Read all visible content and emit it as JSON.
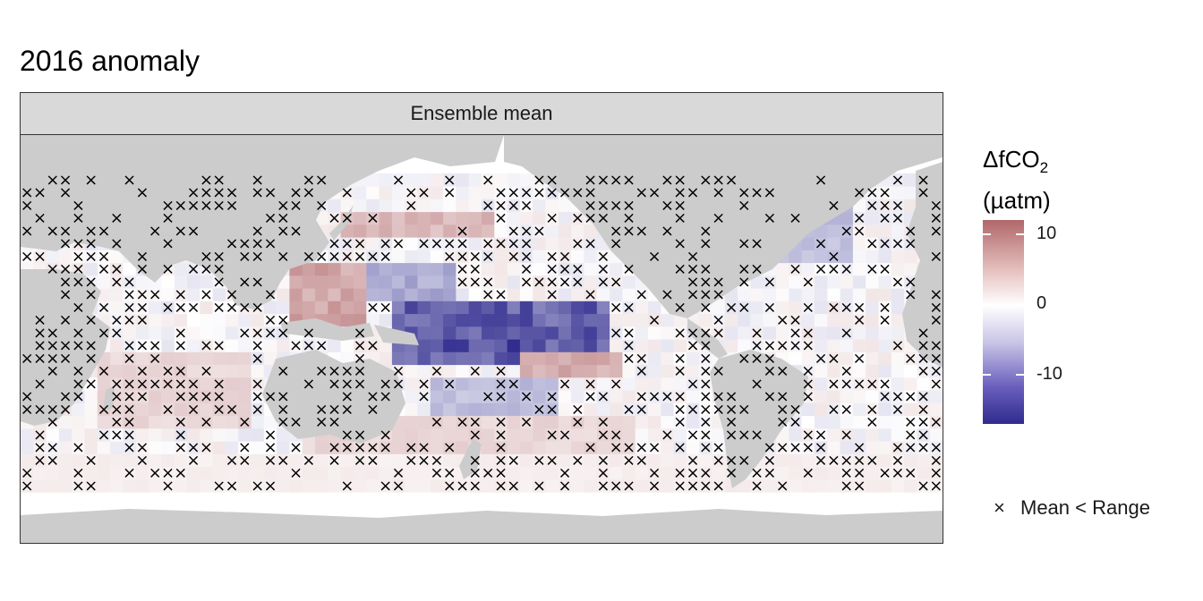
{
  "title": "2016 anomaly",
  "facet_label": "Ensemble mean",
  "legend": {
    "title_main": "ΔfCO",
    "title_sub": "2",
    "units": "(µatm)",
    "ticks": [
      {
        "value": 10,
        "label": "10"
      },
      {
        "value": 0,
        "label": "0"
      },
      {
        "value": -10,
        "label": "-10"
      }
    ],
    "range": [
      -17,
      12
    ],
    "colors": {
      "high": "#b0676a",
      "mid": "#ffffff",
      "low": "#2f2b8e"
    },
    "mark_symbol": "×",
    "mark_label": "Mean < Range"
  },
  "colors": {
    "land": "#cccccc",
    "ocean": "#ffffff",
    "strip": "#d9d9d9"
  },
  "chart_data": {
    "type": "heatmap",
    "projection": "plate carree, Pacific-centered (0–360°E)",
    "lon_range": [
      20,
      380
    ],
    "lat_range": [
      -80,
      80
    ],
    "cell_size_deg": 5,
    "variable": "ΔfCO2 anomaly (µatm)",
    "anomaly_regions": [
      {
        "lon": [
          165,
          250
        ],
        "lat": [
          -10,
          15
        ],
        "value": -15
      },
      {
        "lon": [
          170,
          225
        ],
        "lat": [
          -5,
          5
        ],
        "value": -17
      },
      {
        "lon": [
          150,
          190
        ],
        "lat": [
          15,
          30
        ],
        "value": -7
      },
      {
        "lon": [
          180,
          230
        ],
        "lat": [
          -30,
          -15
        ],
        "value": -5
      },
      {
        "lon": [
          300,
          345
        ],
        "lat": [
          30,
          55
        ],
        "value": -5
      },
      {
        "lon": [
          145,
          205
        ],
        "lat": [
          38,
          50
        ],
        "value": 6
      },
      {
        "lon": [
          125,
          155
        ],
        "lat": [
          5,
          30
        ],
        "value": 8
      },
      {
        "lon": [
          50,
          110
        ],
        "lat": [
          -35,
          -5
        ],
        "value": 3
      },
      {
        "lon": [
          130,
          260
        ],
        "lat": [
          -45,
          -30
        ],
        "value": 3
      },
      {
        "lon": [
          215,
          255
        ],
        "lat": [
          -15,
          -5
        ],
        "value": 7
      },
      {
        "lon": [
          275,
          300
        ],
        "lat": [
          25,
          40
        ],
        "value": 3
      },
      {
        "lon": [
          20,
          380
        ],
        "lat": [
          -60,
          -45
        ],
        "value": 1
      }
    ]
  }
}
